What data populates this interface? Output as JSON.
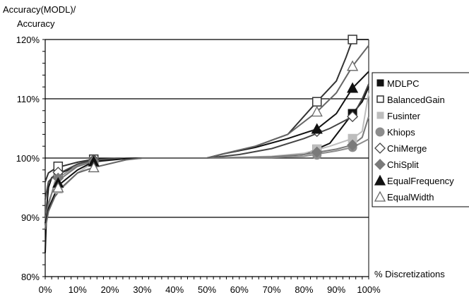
{
  "chart_data": {
    "type": "line",
    "ylabel_lines": [
      "Accuracy(MODL)/",
      "Accuracy"
    ],
    "xlabel": "% Discretizations",
    "xlim": [
      0,
      100
    ],
    "ylim": [
      80,
      120
    ],
    "x_ticks": [
      "0%",
      "10%",
      "20%",
      "30%",
      "40%",
      "50%",
      "60%",
      "70%",
      "80%",
      "90%",
      "100%"
    ],
    "y_ticks": [
      "80%",
      "90%",
      "100%",
      "110%",
      "120%"
    ],
    "grid": "horizontal major lines",
    "legend_position": "right",
    "series": [
      {
        "name": "MDLPC",
        "marker": "filled-square",
        "color": "#111111",
        "points": [
          [
            0,
            84
          ],
          [
            0.5,
            92
          ],
          [
            1,
            95
          ],
          [
            2,
            96.7
          ],
          [
            4,
            97.3
          ],
          [
            8,
            98.2
          ],
          [
            15,
            99.5
          ],
          [
            25,
            99.9
          ],
          [
            30,
            100
          ],
          [
            50,
            100
          ],
          [
            60,
            100.1
          ],
          [
            70,
            100.2
          ],
          [
            80,
            100.6
          ],
          [
            88,
            102.5
          ],
          [
            95,
            107.5
          ],
          [
            98,
            109.5
          ],
          [
            100,
            112
          ]
        ],
        "markers": [
          [
            4,
            97.3
          ],
          [
            15,
            99.5
          ],
          [
            84,
            101.5
          ],
          [
            95,
            107.5
          ]
        ]
      },
      {
        "name": "BalancedGain",
        "marker": "open-square",
        "color": "#333333",
        "points": [
          [
            0,
            96
          ],
          [
            1,
            97.5
          ],
          [
            3,
            98.2
          ],
          [
            5,
            98.6
          ],
          [
            10,
            99.3
          ],
          [
            15,
            99.8
          ],
          [
            22,
            99.95
          ],
          [
            30,
            100
          ],
          [
            50,
            100
          ],
          [
            55,
            100.7
          ],
          [
            65,
            102
          ],
          [
            75,
            104
          ],
          [
            84,
            109.5
          ],
          [
            90,
            113
          ],
          [
            93,
            117
          ],
          [
            95,
            120
          ],
          [
            100,
            120
          ]
        ],
        "markers": [
          [
            4,
            98.6
          ],
          [
            15,
            99.8
          ],
          [
            84,
            109.5
          ],
          [
            95,
            120
          ]
        ]
      },
      {
        "name": "Fusinter",
        "marker": "light-square",
        "color": "#bdbdbd",
        "points": [
          [
            0,
            89
          ],
          [
            1,
            91.5
          ],
          [
            3,
            93.5
          ],
          [
            5,
            94.8
          ],
          [
            10,
            97.5
          ],
          [
            15,
            99.3
          ],
          [
            25,
            99.9
          ],
          [
            30,
            100
          ],
          [
            50,
            100
          ],
          [
            70,
            100.3
          ],
          [
            80,
            100.8
          ],
          [
            88,
            102
          ],
          [
            95,
            103.3
          ],
          [
            98,
            104.5
          ],
          [
            100,
            111
          ]
        ],
        "markers": [
          [
            4,
            94.8
          ],
          [
            15,
            99.3
          ],
          [
            84,
            101.5
          ],
          [
            95,
            103.3
          ]
        ]
      },
      {
        "name": "Khiops",
        "marker": "circle",
        "color": "#8c8c8c",
        "points": [
          [
            0,
            88
          ],
          [
            1,
            92
          ],
          [
            3,
            96
          ],
          [
            5,
            97
          ],
          [
            10,
            98.8
          ],
          [
            15,
            99.6
          ],
          [
            25,
            99.95
          ],
          [
            30,
            100
          ],
          [
            50,
            100
          ],
          [
            70,
            100.1
          ],
          [
            80,
            100.3
          ],
          [
            90,
            101.2
          ],
          [
            95,
            101.8
          ],
          [
            100,
            103.2
          ]
        ],
        "markers": [
          [
            4,
            97
          ],
          [
            15,
            99.6
          ],
          [
            84,
            100.5
          ],
          [
            95,
            101.8
          ]
        ]
      },
      {
        "name": "ChiMerge",
        "marker": "open-diamond",
        "color": "#444444",
        "points": [
          [
            0,
            93
          ],
          [
            1,
            96
          ],
          [
            3,
            97.2
          ],
          [
            5,
            97.6
          ],
          [
            10,
            99
          ],
          [
            15,
            99.7
          ],
          [
            25,
            99.95
          ],
          [
            30,
            100
          ],
          [
            50,
            100
          ],
          [
            60,
            100.6
          ],
          [
            70,
            101.6
          ],
          [
            80,
            103.3
          ],
          [
            88,
            105
          ],
          [
            95,
            107
          ],
          [
            98,
            110
          ],
          [
            100,
            112.5
          ]
        ],
        "markers": [
          [
            4,
            97.6
          ],
          [
            15,
            99.7
          ],
          [
            84,
            104.5
          ],
          [
            95,
            107
          ]
        ]
      },
      {
        "name": "ChiSplit",
        "marker": "filled-diamond",
        "color": "#7a7a7a",
        "points": [
          [
            0,
            89.5
          ],
          [
            1,
            92.5
          ],
          [
            3,
            95.5
          ],
          [
            5,
            96.6
          ],
          [
            10,
            98.6
          ],
          [
            15,
            99.5
          ],
          [
            25,
            99.95
          ],
          [
            30,
            100
          ],
          [
            50,
            100
          ],
          [
            70,
            100.2
          ],
          [
            80,
            100.6
          ],
          [
            90,
            101.5
          ],
          [
            95,
            102.2
          ],
          [
            98,
            103.5
          ],
          [
            100,
            107
          ]
        ],
        "markers": [
          [
            4,
            96.6
          ],
          [
            15,
            99.5
          ],
          [
            84,
            101
          ],
          [
            95,
            102.2
          ]
        ]
      },
      {
        "name": "EqualFrequency",
        "marker": "filled-triangle",
        "color": "#111111",
        "points": [
          [
            0,
            89
          ],
          [
            1,
            91.5
          ],
          [
            3,
            94
          ],
          [
            5,
            95.8
          ],
          [
            10,
            98
          ],
          [
            15,
            99.4
          ],
          [
            25,
            99.9
          ],
          [
            30,
            100
          ],
          [
            50,
            100
          ],
          [
            55,
            100.7
          ],
          [
            65,
            101.8
          ],
          [
            75,
            103.3
          ],
          [
            84,
            104.9
          ],
          [
            90,
            107.5
          ],
          [
            95,
            111.8
          ],
          [
            100,
            114.6
          ]
        ],
        "markers": [
          [
            4,
            95.8
          ],
          [
            15,
            99.4
          ],
          [
            84,
            104.9
          ],
          [
            95,
            111.8
          ]
        ]
      },
      {
        "name": "EqualWidth",
        "marker": "open-triangle",
        "color": "#666666",
        "points": [
          [
            0,
            88
          ],
          [
            1,
            91
          ],
          [
            3,
            93.5
          ],
          [
            5,
            95
          ],
          [
            10,
            97.5
          ],
          [
            15,
            98.4
          ],
          [
            25,
            99.7
          ],
          [
            30,
            100
          ],
          [
            50,
            100
          ],
          [
            55,
            100.7
          ],
          [
            65,
            102
          ],
          [
            75,
            104
          ],
          [
            84,
            107.8
          ],
          [
            90,
            111
          ],
          [
            95,
            115.5
          ],
          [
            100,
            119
          ]
        ],
        "markers": [
          [
            4,
            95
          ],
          [
            15,
            98.4
          ],
          [
            84,
            107.8
          ],
          [
            95,
            115.5
          ]
        ]
      }
    ]
  }
}
